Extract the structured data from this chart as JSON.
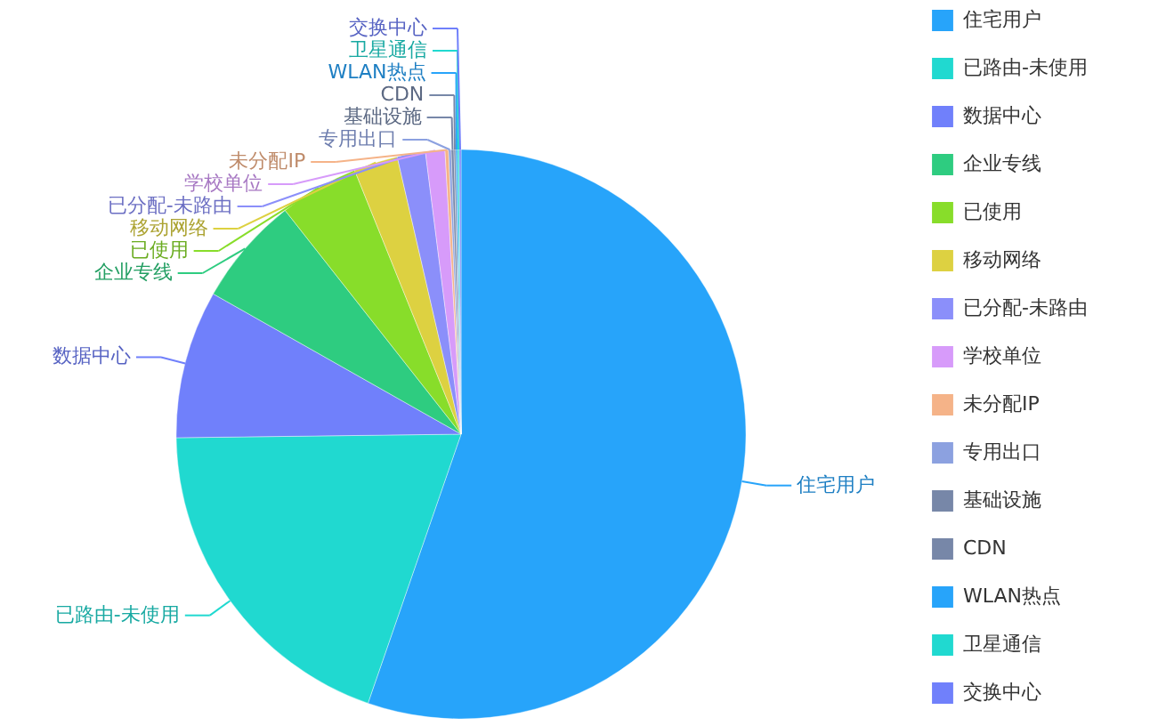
{
  "chart_data": {
    "type": "pie",
    "categories": [
      "住宅用户",
      "已路由-未使用",
      "数据中心",
      "企业专线",
      "已使用",
      "移动网络",
      "已分配-未路由",
      "学校单位",
      "未分配IP",
      "专用出口",
      "基础设施",
      "CDN",
      "WLAN热点",
      "卫星通信",
      "交换中心"
    ],
    "values": [
      55.3,
      19.5,
      8.4,
      6.2,
      4.5,
      2.5,
      1.6,
      1.1,
      0.2,
      0.15,
      0.15,
      0.1,
      0.1,
      0.1,
      0.1
    ],
    "colors": [
      "#27a4fa",
      "#20d9d0",
      "#7080fb",
      "#2ecc80",
      "#88dd2a",
      "#ddd141",
      "#8b8ffa",
      "#d79bfa",
      "#f5b388",
      "#8ca1e0",
      "#7787a8",
      "#7787a8",
      "#27a4fa",
      "#20d9d0",
      "#7080fb"
    ],
    "legend": "right"
  }
}
